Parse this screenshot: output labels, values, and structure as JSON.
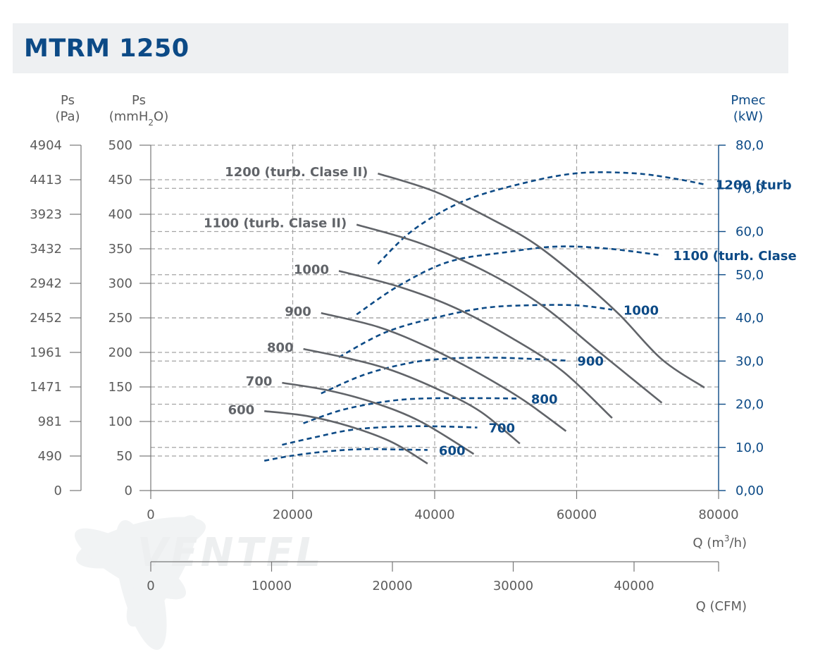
{
  "header": {
    "title": "MTRM 1250"
  },
  "colors": {
    "curve": "#616469",
    "power": "#0c4a86",
    "grid": "#a4a4a4",
    "axis_right": "#0c4a86",
    "text": "#5c5c5c"
  },
  "axes": {
    "left_pa": {
      "label": "Ps",
      "unit": "(Pa)",
      "ticks": [
        "4904",
        "4413",
        "3923",
        "3432",
        "2942",
        "2452",
        "1961",
        "1471",
        "981",
        "490",
        "0"
      ]
    },
    "left_mmh2o": {
      "label": "Ps",
      "unit_prefix": "(mmH",
      "unit_sub": "2",
      "unit_suffix": "O)",
      "ticks": [
        "500",
        "450",
        "400",
        "350",
        "300",
        "250",
        "200",
        "150",
        "100",
        "50",
        "0"
      ]
    },
    "right_kw": {
      "label": "Pmec",
      "unit": "(kW)",
      "ticks": [
        "80,0",
        "70,0",
        "60,0",
        "50,0",
        "40,0",
        "30,0",
        "20,0",
        "10,0",
        "0,00"
      ]
    },
    "x_m3h": {
      "label_prefix": "Q (m",
      "label_sup": "3",
      "label_suffix": "/h)",
      "ticks": [
        "0",
        "20000",
        "40000",
        "60000",
        "80000"
      ]
    },
    "x_cfm": {
      "label": "Q (CFM)",
      "ticks": [
        "0",
        "10000",
        "20000",
        "30000",
        "40000"
      ]
    }
  },
  "watermark": {
    "text": "VENTEL"
  },
  "chart_data": {
    "type": "line",
    "xlabel": "Q (m3/h)",
    "ylabel": "Ps (mmH2O)",
    "y2label": "Pmec (kW)",
    "xlim": [
      0,
      80000
    ],
    "ylim": [
      0,
      500
    ],
    "y2lim": [
      0,
      80
    ],
    "pressure_curves": [
      {
        "name": "600",
        "label": "600",
        "points": [
          [
            16000,
            115
          ],
          [
            22000,
            108
          ],
          [
            28000,
            93
          ],
          [
            34000,
            70
          ],
          [
            39000,
            39
          ]
        ]
      },
      {
        "name": "700",
        "label": "700",
        "points": [
          [
            18500,
            156
          ],
          [
            25000,
            145
          ],
          [
            31500,
            127
          ],
          [
            38000,
            100
          ],
          [
            45500,
            53
          ]
        ]
      },
      {
        "name": "800",
        "label": "800",
        "points": [
          [
            21500,
            205
          ],
          [
            28000,
            191
          ],
          [
            34000,
            174
          ],
          [
            41000,
            144
          ],
          [
            46500,
            114
          ],
          [
            52000,
            68
          ]
        ]
      },
      {
        "name": "900",
        "label": "900",
        "points": [
          [
            24000,
            257
          ],
          [
            32000,
            237
          ],
          [
            39000,
            208
          ],
          [
            46000,
            171
          ],
          [
            52500,
            131
          ],
          [
            58500,
            86
          ]
        ]
      },
      {
        "name": "1000",
        "label": "1000",
        "points": [
          [
            26500,
            318
          ],
          [
            35000,
            295
          ],
          [
            43000,
            264
          ],
          [
            51000,
            220
          ],
          [
            58000,
            173
          ],
          [
            65000,
            105
          ]
        ]
      },
      {
        "name": "1100 (turb. Clase II)",
        "label": "1100 (turb. Clase II)",
        "points": [
          [
            29000,
            385
          ],
          [
            38000,
            358
          ],
          [
            47000,
            318
          ],
          [
            55000,
            269
          ],
          [
            63000,
            202
          ],
          [
            72000,
            127
          ]
        ]
      },
      {
        "name": "1200 (turb. Clase II)",
        "label": "1200 (turb. Clase II)",
        "points": [
          [
            32000,
            459
          ],
          [
            40000,
            433
          ],
          [
            48000,
            393
          ],
          [
            54000,
            358
          ],
          [
            60000,
            310
          ],
          [
            66000,
            255
          ],
          [
            72000,
            190
          ],
          [
            78000,
            149
          ]
        ]
      }
    ],
    "power_curves": [
      {
        "name": "600",
        "label": "600",
        "points": [
          [
            16000,
            6.9
          ],
          [
            20000,
            8.1
          ],
          [
            25000,
            9.1
          ],
          [
            30000,
            9.6
          ],
          [
            35000,
            9.5
          ],
          [
            39000,
            9.4
          ]
        ]
      },
      {
        "name": "700",
        "label": "700",
        "points": [
          [
            18500,
            10.6
          ],
          [
            23000,
            12.3
          ],
          [
            28000,
            14.0
          ],
          [
            33000,
            14.7
          ],
          [
            39000,
            14.9
          ],
          [
            46000,
            14.6
          ]
        ]
      },
      {
        "name": "800",
        "label": "800",
        "points": [
          [
            21500,
            15.6
          ],
          [
            27000,
            18.7
          ],
          [
            33000,
            20.6
          ],
          [
            38000,
            21.3
          ],
          [
            46000,
            21.4
          ],
          [
            52000,
            21.3
          ]
        ]
      },
      {
        "name": "900",
        "label": "900",
        "points": [
          [
            24000,
            22.5
          ],
          [
            30000,
            26.8
          ],
          [
            36000,
            29.4
          ],
          [
            41000,
            30.5
          ],
          [
            48000,
            30.8
          ],
          [
            55000,
            30.4
          ],
          [
            58500,
            30.1
          ]
        ]
      },
      {
        "name": "1000",
        "label": "1000",
        "points": [
          [
            26500,
            30.9
          ],
          [
            33000,
            36.6
          ],
          [
            40000,
            40.0
          ],
          [
            47000,
            42.3
          ],
          [
            53000,
            42.9
          ],
          [
            60000,
            42.9
          ],
          [
            65000,
            41.9
          ]
        ]
      },
      {
        "name": "1100 (turb. Clase II)",
        "label": "1100 (turb. Clase",
        "points": [
          [
            29000,
            40.8
          ],
          [
            35000,
            47.5
          ],
          [
            42000,
            53.0
          ],
          [
            50000,
            55.2
          ],
          [
            57000,
            56.5
          ],
          [
            64000,
            56.1
          ],
          [
            72000,
            54.5
          ]
        ]
      },
      {
        "name": "1200 (turb. Clase II)",
        "label": "1200 (turb",
        "points": [
          [
            32000,
            52.5
          ],
          [
            37000,
            60.4
          ],
          [
            44000,
            67.0
          ],
          [
            52000,
            71.0
          ],
          [
            60000,
            73.5
          ],
          [
            68000,
            73.5
          ],
          [
            74000,
            72.2
          ],
          [
            78000,
            70.9
          ]
        ]
      }
    ]
  }
}
